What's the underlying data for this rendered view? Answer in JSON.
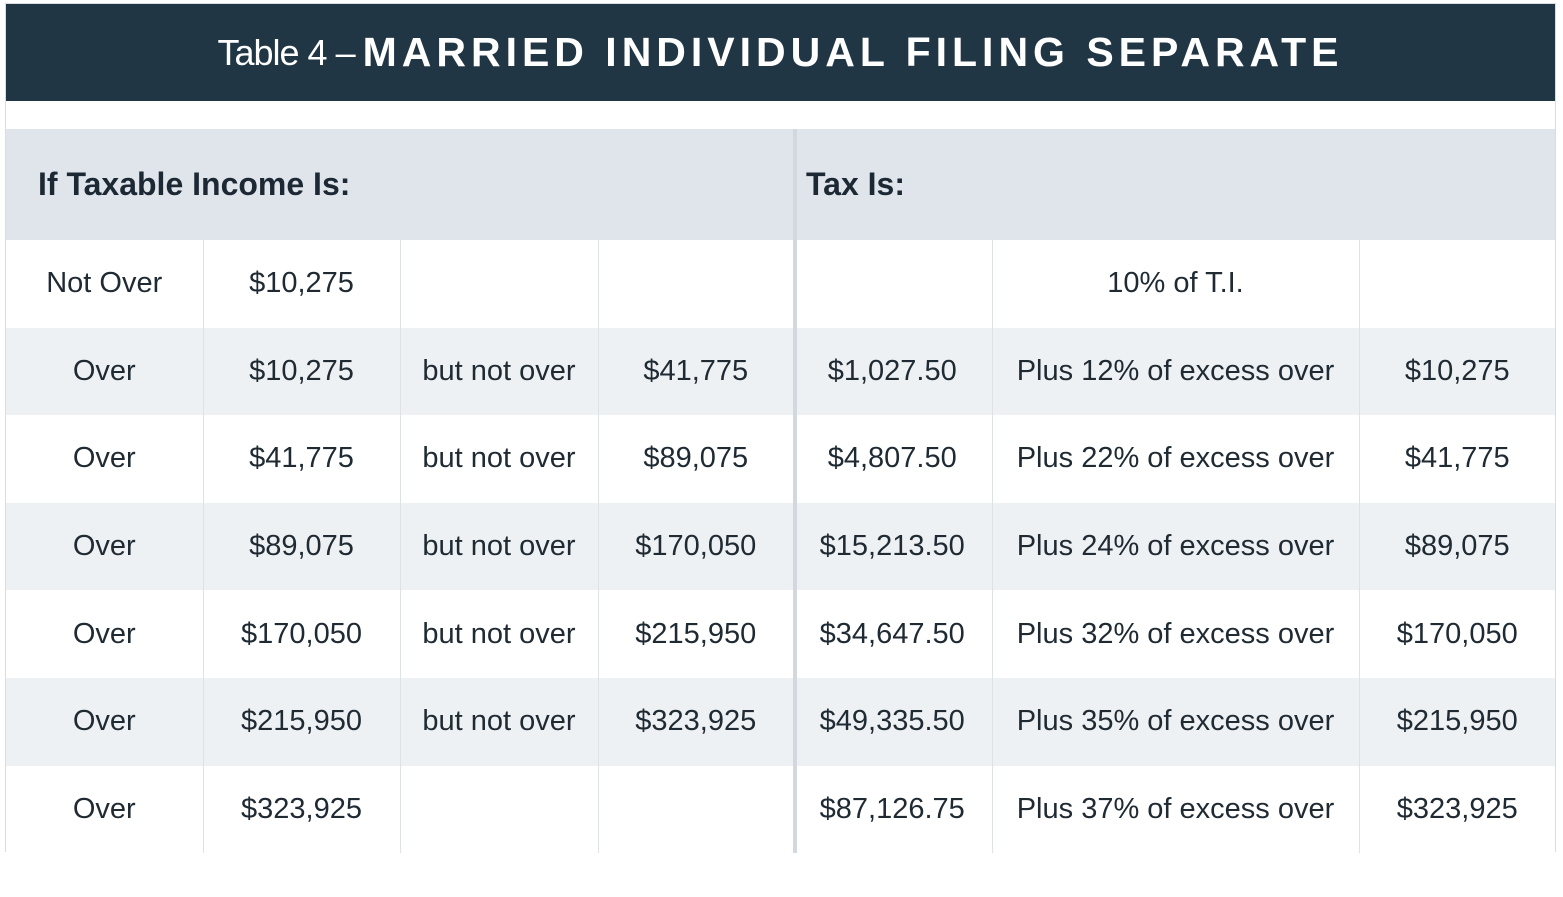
{
  "title": {
    "prefix": "Table 4 –",
    "main": "MARRIED INDIVIDUAL FILING SEPARATE"
  },
  "headers": {
    "income": "If Taxable Income Is:",
    "tax": "Tax Is:"
  },
  "rows": [
    {
      "cond": "Not Over",
      "low": "$10,275",
      "mid": "",
      "high": "",
      "base": "",
      "rate": "10% of T.I.",
      "over": ""
    },
    {
      "cond": "Over",
      "low": "$10,275",
      "mid": "but not over",
      "high": "$41,775",
      "base": "$1,027.50",
      "rate": "Plus 12% of excess over",
      "over": "$10,275"
    },
    {
      "cond": "Over",
      "low": "$41,775",
      "mid": "but not over",
      "high": "$89,075",
      "base": "$4,807.50",
      "rate": "Plus 22% of excess over",
      "over": "$41,775"
    },
    {
      "cond": "Over",
      "low": "$89,075",
      "mid": "but not over",
      "high": "$170,050",
      "base": "$15,213.50",
      "rate": "Plus 24% of excess over",
      "over": "$89,075"
    },
    {
      "cond": "Over",
      "low": "$170,050",
      "mid": "but not over",
      "high": "$215,950",
      "base": "$34,647.50",
      "rate": "Plus 32% of excess over",
      "over": "$170,050"
    },
    {
      "cond": "Over",
      "low": "$215,950",
      "mid": "but not over",
      "high": "$323,925",
      "base": "$49,335.50",
      "rate": "Plus 35% of excess over",
      "over": "$215,950"
    },
    {
      "cond": "Over",
      "low": "$323,925",
      "mid": "",
      "high": "",
      "base": "$87,126.75",
      "rate": "Plus 37% of excess over",
      "over": "$323,925"
    }
  ]
}
